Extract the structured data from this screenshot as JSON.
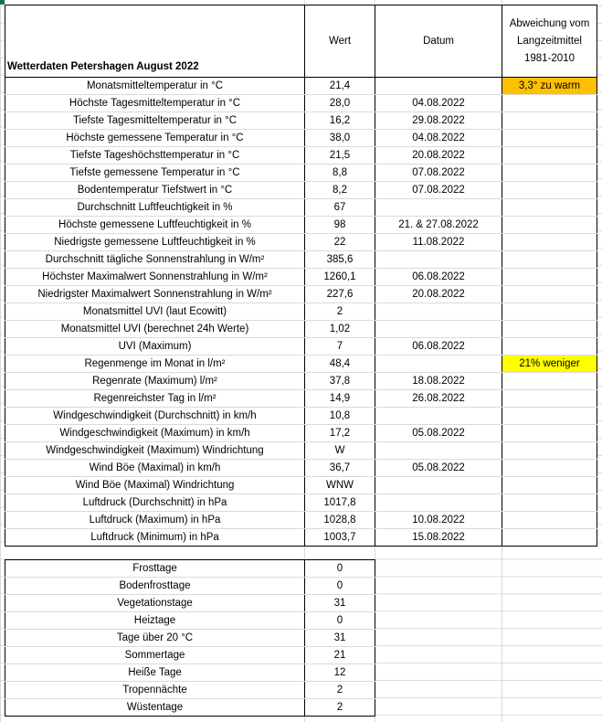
{
  "sheet": {
    "title": "Wetterdaten Petershagen August 2022",
    "headers": {
      "value": "Wert",
      "date": "Datum",
      "deviation": "Abweichung vom Langzeitmittel 1981-2010"
    },
    "colors": {
      "warm_highlight": "#ffc000",
      "rain_highlight": "#ffff00"
    },
    "rows": [
      {
        "label": "Monatsmitteltemperatur in °C",
        "value": "21,4",
        "date": "",
        "deviation": "3,3° zu warm",
        "highlight": "#ffc000"
      },
      {
        "label": "Höchste Tagesmitteltemperatur in °C",
        "value": "28,0",
        "date": "04.08.2022",
        "deviation": ""
      },
      {
        "label": "Tiefste Tagesmitteltemperatur in °C",
        "value": "16,2",
        "date": "29.08.2022",
        "deviation": ""
      },
      {
        "label": "Höchste gemessene Temperatur in °C",
        "value": "38,0",
        "date": "04.08.2022",
        "deviation": ""
      },
      {
        "label": "Tiefste Tageshöchsttemperatur in °C",
        "value": "21,5",
        "date": "20.08.2022",
        "deviation": ""
      },
      {
        "label": "Tiefste gemessene Temperatur in °C",
        "value": "8,8",
        "date": "07.08.2022",
        "deviation": ""
      },
      {
        "label": "Bodentemperatur Tiefstwert in °C",
        "value": "8,2",
        "date": "07.08.2022",
        "deviation": ""
      },
      {
        "label": "Durchschnitt Luftfeuchtigkeit in %",
        "value": "67",
        "date": "",
        "deviation": ""
      },
      {
        "label": "Höchste gemessene Luftfeuchtigkeit in %",
        "value": "98",
        "date": "21. & 27.08.2022",
        "deviation": ""
      },
      {
        "label": "Niedrigste gemessene Luftfeuchtigkeit in %",
        "value": "22",
        "date": "11.08.2022",
        "deviation": ""
      },
      {
        "label": "Durchschnitt tägliche Sonnenstrahlung in W/m²",
        "value": "385,6",
        "date": "",
        "deviation": ""
      },
      {
        "label": "Höchster Maximalwert Sonnenstrahlung in W/m²",
        "value": "1260,1",
        "date": "06.08.2022",
        "deviation": ""
      },
      {
        "label": "Niedrigster Maximalwert Sonnenstrahlung in W/m²",
        "value": "227,6",
        "date": "20.08.2022",
        "deviation": ""
      },
      {
        "label": "Monatsmittel UVI (laut Ecowitt)",
        "value": "2",
        "date": "",
        "deviation": ""
      },
      {
        "label": "Monatsmittel UVI (berechnet 24h Werte)",
        "value": "1,02",
        "date": "",
        "deviation": ""
      },
      {
        "label": "UVI (Maximum)",
        "value": "7",
        "date": "06.08.2022",
        "deviation": ""
      },
      {
        "label": "Regenmenge im Monat in l/m²",
        "value": "48,4",
        "date": "",
        "deviation": "21% weniger",
        "highlight": "#ffff00"
      },
      {
        "label": "Regenrate (Maximum) l/m²",
        "value": "37,8",
        "date": "18.08.2022",
        "deviation": ""
      },
      {
        "label": "Regenreichster Tag in l/m²",
        "value": "14,9",
        "date": "26.08.2022",
        "deviation": ""
      },
      {
        "label": "Windgeschwindigkeit (Durchschnitt) in km/h",
        "value": "10,8",
        "date": "",
        "deviation": ""
      },
      {
        "label": "Windgeschwindigkeit (Maximum) in km/h",
        "value": "17,2",
        "date": "05.08.2022",
        "deviation": ""
      },
      {
        "label": "Windgeschwindigkeit (Maximum) Windrichtung",
        "value": "W",
        "date": "",
        "deviation": ""
      },
      {
        "label": "Wind Böe (Maximal) in km/h",
        "value": "36,7",
        "date": "05.08.2022",
        "deviation": ""
      },
      {
        "label": "Wind Böe (Maximal) Windrichtung",
        "value": "WNW",
        "date": "",
        "deviation": ""
      },
      {
        "label": "Luftdruck (Durchschnitt) in hPa",
        "value": "1017,8",
        "date": "",
        "deviation": ""
      },
      {
        "label": "Luftdruck (Maximum) in hPa",
        "value": "1028,8",
        "date": "10.08.2022",
        "deviation": ""
      },
      {
        "label": "Luftdruck (Minimum) in hPa",
        "value": "1003,7",
        "date": "15.08.2022",
        "deviation": ""
      }
    ]
  },
  "days": [
    {
      "label": "Frosttage",
      "value": "0"
    },
    {
      "label": "Bodenfrosttage",
      "value": "0"
    },
    {
      "label": "Vegetationstage",
      "value": "31"
    },
    {
      "label": "Heiztage",
      "value": "0"
    },
    {
      "label": "Tage über 20 °C",
      "value": "31"
    },
    {
      "label": "Sommertage",
      "value": "21"
    },
    {
      "label": "Heiße Tage",
      "value": "12"
    },
    {
      "label": "Tropennächte",
      "value": "2"
    },
    {
      "label": "Wüstentage",
      "value": "2"
    }
  ]
}
